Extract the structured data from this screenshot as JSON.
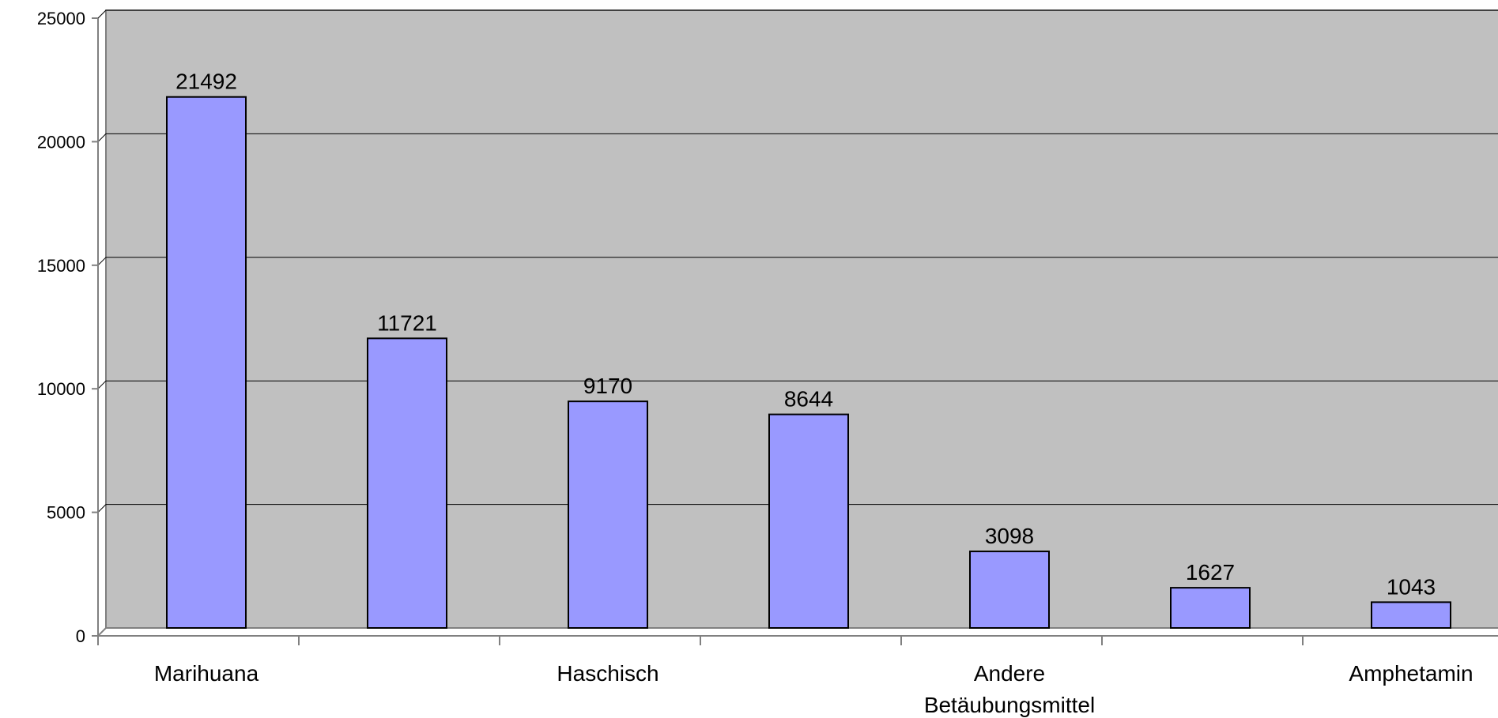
{
  "chart_data": {
    "type": "bar",
    "categories": [
      "Marihuana",
      "",
      "Haschisch",
      "",
      "Andere Betäubungsmittel",
      "",
      "Amphetamin"
    ],
    "category_label_lines": [
      [
        "Marihuana"
      ],
      [],
      [
        "Haschisch"
      ],
      [],
      [
        "Andere",
        "Betäubungsmittel"
      ],
      [],
      [
        "Amphetamin"
      ]
    ],
    "values": [
      21492,
      11721,
      9170,
      8644,
      3098,
      1627,
      1043
    ],
    "data_labels": [
      "21492",
      "11721",
      "9170",
      "8644",
      "3098",
      "1627",
      "1043"
    ],
    "title": "",
    "xlabel": "",
    "ylabel": "",
    "ylim": [
      0,
      25000
    ],
    "yticks": [
      0,
      5000,
      10000,
      15000,
      20000,
      25000
    ],
    "ytick_labels": [
      "0",
      "5000",
      "10000",
      "15000",
      "20000",
      "25000"
    ],
    "grid": true,
    "legend": "none",
    "colors": {
      "bar_fill": "#9999ff",
      "bar_stroke": "#000000",
      "plot_background": "#c0c0c0",
      "gridline": "#000000",
      "axis": "#808080",
      "page_background": "#ffffff"
    }
  }
}
